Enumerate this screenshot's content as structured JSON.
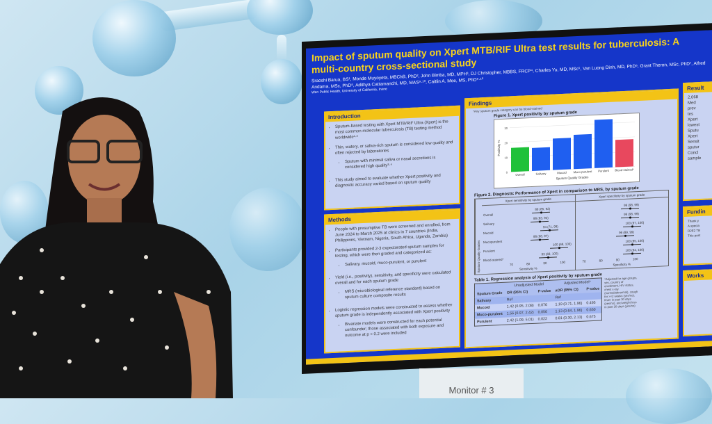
{
  "poster": {
    "title": "Impact of sputum quality on Xpert MTB/RIF Ultra test results for tuberculosis: A multi-country cross-sectional study",
    "authors": "Sraoshi Barua, BS¹, Monde Muyoyeta, MBChB, PhD², John Bimba, MD, MPH³, DJ Christopher, MBBS, FRCP⁴, Charles Yu, MD, MSc⁵, Van Luong Dinh, MD, PhD⁶, Grant Theron, MSc, PhD⁷, Alfred Andama, MSc, PhD⁸, Adithya Cattamanchi, MD, MAS⁹·¹⁰, Caitlin A. Moe, MS, PhD⁹·¹⁰",
    "institution": "Wen Public Health, University of California, Irvine",
    "introduction": {
      "heading": "Introduction",
      "bullets": [
        {
          "text": "Sputum-based testing with Xpert MTB/RIF Ultra (Xpert) is the most common molecular tuberculosis (TB) testing method worldwide¹·²",
          "sub": []
        },
        {
          "text": "Thin, watery, or saliva-rich sputum is considered low quality and often rejected by laboratories",
          "sub": [
            "Sputum with minimal saliva or nasal secretions is considered high quality³·⁴"
          ]
        },
        {
          "text": "This study aimed to evaluate whether Xpert positivity and diagnostic accuracy varied based on sputum quality",
          "sub": []
        }
      ]
    },
    "methods": {
      "heading": "Methods",
      "bullets": [
        {
          "text": "People with presumptive TB were screened and enrolled, from June 2024 to March 2025 at clinics in 7 countries (India, Philippines, Vietnam, Nigeria, South Africa, Uganda, Zambia)",
          "sub": []
        },
        {
          "text": "Participants provided 2-3 expectorated sputum samples for testing, which were then graded and categorized as:",
          "sub": [
            "Salivary, mucoid, muco-purulent, or purulent"
          ]
        },
        {
          "text": "Yield (i.e., positivity), sensitivity, and specificity were calculated overall and for each sputum grade",
          "sub": [
            "MRS (microbiological reference standard) based on sputum culture composite results"
          ]
        },
        {
          "text": "Logistic regression models were constructed to assess whether sputum grade is independently associated with Xpert positivity",
          "sub": [
            "Bivariate models were constructed for each potential confounder; those associated with both exposure and outcome at p < 0.2 were included"
          ]
        }
      ]
    },
    "findings": {
      "heading": "Findings",
      "note": "*Any sputum grade category can be blood-stained",
      "fig2": {
        "title": "Figure 2. Diagnostic Performance of Xpert in comparison to MRS, by sputum grade",
        "left_title": "Xpert sensitivity by sputum grade",
        "right_title": "Xpert specificity by sputum grade",
        "ylabel": "Sputum Quality Grades",
        "left_xlabel": "Sensitivity %",
        "right_xlabel": "Specificity %",
        "ticks": [
          "70",
          "80",
          "90",
          "100"
        ],
        "rows": [
          {
            "grade": "Overall",
            "sens": "89 (85, 92)",
            "spec": "99 (98, 99)"
          },
          {
            "grade": "Salivary",
            "sens": "88 (83, 92)",
            "spec": "99 (98, 99)"
          },
          {
            "grade": "Mucoid",
            "sens": "94 (71, 98)",
            "spec": "100 (97, 100)"
          },
          {
            "grade": "Mucopurulent",
            "sens": "88 (68, 97)",
            "spec": "96 (89, 99)"
          },
          {
            "grade": "Purulent",
            "sens": "100 (69, 100)",
            "spec": "100 (85, 100)"
          },
          {
            "grade": "Blood-stained*",
            "sens": "93 (68, 100)",
            "spec": "100 (94, 100)"
          }
        ]
      },
      "table": {
        "title": "Table 1. Regression analysis of Xpert positivity by sputum grade",
        "group_headers": [
          "Unadjusted Model",
          "Adjusted Model*"
        ],
        "headers": [
          "Sputum Grade",
          "OR (95% CI)",
          "P-value",
          "aOR (95% CI)",
          "P-value"
        ],
        "rows": [
          [
            "Salivary",
            "Ref",
            "",
            "Ref",
            ""
          ],
          [
            "Mucoid",
            "1.42 (0.95, 2.08)",
            "0.076",
            "1.19 (0.71, 1.96)",
            "0.495"
          ],
          [
            "Muco-purulent",
            "1.56 (0.97, 2.42)",
            "0.056",
            "1.13 (0.64, 1.96)",
            "0.650"
          ],
          [
            "Purulent",
            "2.42 (1.09, 5.01)",
            "0.022",
            "0.81 (0.30, 2.13)",
            "0.675"
          ]
        ],
        "footnote": "*Adjusted for age groups, sex, country of enrollment, HIV status, chest x-ray (normal/abnormal), cough for >=2 weeks (yes/no), fever in past 30 days (yes/no), and weight loss in past 30 days (yes/no)"
      }
    },
    "results": {
      "heading": "Result",
      "lines": [
        "2,068",
        "Med",
        "prev",
        "tes",
        "Xpert",
        "lowest",
        "Sputu",
        "Xpert",
        "Sensit",
        "sputur",
        "Concl",
        "sample"
      ]
    },
    "funding": {
      "heading": "Fundin",
      "lines": [
        "Thank y",
        "A specia",
        "R2E2 TB",
        "This post"
      ]
    },
    "works": {
      "heading": "Works"
    }
  },
  "chart_data": {
    "type": "bar",
    "title": "Figure 1. Xpert positivity by sputum grade",
    "xlabel": "Sputum Quality Grades",
    "ylabel": "Positivity %",
    "categories": [
      "Overall",
      "Salivary",
      "Mucoid",
      "Muco-purulent",
      "Purulent",
      "Blood-stained*"
    ],
    "values": [
      16.3,
      15.6,
      21.3,
      23.2,
      32.7,
      18.5
    ],
    "ylim": [
      0,
      33
    ],
    "yticks": [
      0,
      10,
      20,
      30
    ],
    "colors": [
      "#1fc13a",
      "#1f5ff0",
      "#1f5ff0",
      "#1f5ff0",
      "#1f5ff0",
      "#e8485e"
    ],
    "grid": true
  },
  "stand": {
    "label": "Monitor # 3"
  }
}
